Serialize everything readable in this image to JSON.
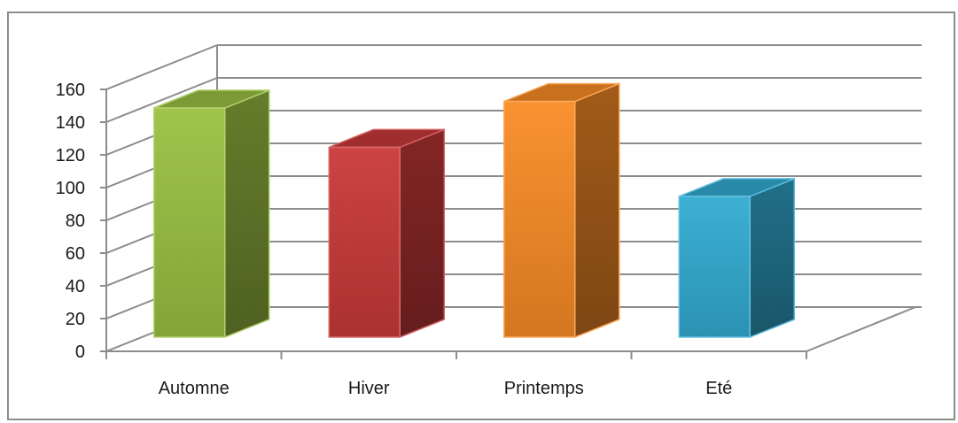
{
  "chart_data": {
    "type": "bar",
    "categories": [
      "Automne",
      "Hiver",
      "Printemps",
      "Eté"
    ],
    "values": [
      140,
      116,
      144,
      86
    ],
    "ylim": [
      0,
      160
    ],
    "yticks": [
      0,
      20,
      40,
      60,
      80,
      100,
      120,
      140,
      160
    ],
    "grid": true,
    "three_d": true,
    "colors": [
      "#9bc142",
      "#c93a39",
      "#f98c26",
      "#32acd2"
    ]
  }
}
